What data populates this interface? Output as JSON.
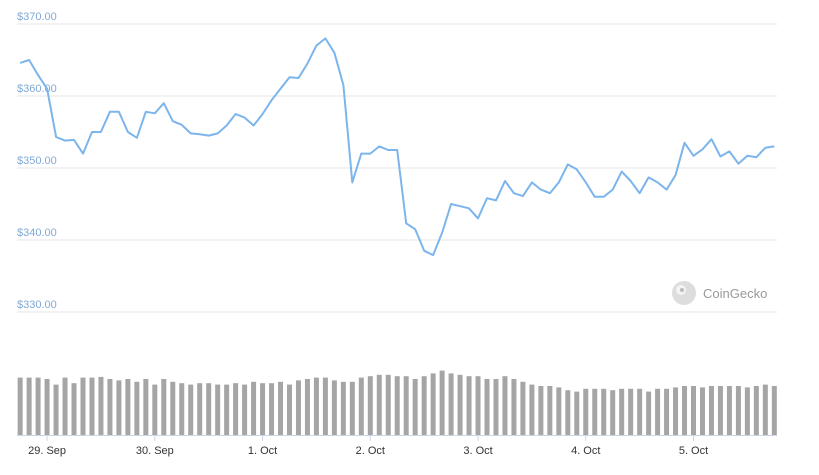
{
  "chart_data": [
    {
      "type": "line",
      "x": [
        -6,
        -4,
        -2,
        0,
        2,
        4,
        6,
        8,
        10,
        12,
        14,
        16,
        18,
        20,
        22,
        24,
        26,
        28,
        30,
        32,
        34,
        36,
        38,
        40,
        42,
        44,
        46,
        48,
        50,
        52,
        54,
        56,
        58,
        60,
        62,
        64,
        66,
        68,
        70,
        72,
        74,
        76,
        78,
        80,
        82,
        84,
        86,
        88,
        90,
        92,
        94,
        96,
        98,
        100,
        102,
        104,
        106,
        108,
        110,
        112,
        114,
        116,
        118,
        120,
        122,
        124,
        126,
        128,
        130,
        132,
        134,
        136,
        138,
        140,
        142,
        144,
        146,
        148,
        150,
        152,
        154,
        156,
        158,
        160,
        162
      ],
      "series": [
        {
          "color": "#7cb5ec",
          "values": [
            364.6,
            365,
            362.9,
            361,
            354.3,
            353.8,
            353.9,
            352,
            355,
            355,
            357.8,
            357.8,
            355,
            354.2,
            357.8,
            357.6,
            359,
            356.5,
            356,
            354.8,
            354.7,
            354.5,
            354.8,
            355.9,
            357.5,
            357,
            355.9,
            357.5,
            359.4,
            361,
            362.6,
            362.5,
            364.5,
            367,
            368,
            366,
            361.5,
            348,
            352,
            352,
            353,
            352.5,
            352.5,
            342.3,
            341.5,
            338.5,
            337.9,
            341,
            345,
            344.7,
            344.4,
            343,
            345.8,
            345.5,
            348.2,
            346.5,
            346.1,
            348,
            347,
            346.5,
            348,
            350.5,
            349.8,
            348,
            346,
            346,
            347,
            349.5,
            348.2,
            346.5,
            348.7,
            348,
            347,
            349,
            353.5,
            351.7,
            352.6,
            354,
            351.6,
            352.3,
            350.6,
            351.7,
            351.5,
            352.8,
            353
          ]
        }
      ],
      "xlim": [
        -6.7,
        162.6
      ],
      "ylim": [
        330,
        370
      ],
      "yticks": [
        {
          "value": 330,
          "label": "$330.00"
        },
        {
          "value": 340,
          "label": "$340.00"
        },
        {
          "value": 350,
          "label": "$350.00"
        },
        {
          "value": 360,
          "label": "$360.00"
        },
        {
          "value": 370,
          "label": "$370.00"
        }
      ],
      "grid": true,
      "watermark": "CoinGecko"
    },
    {
      "type": "bar",
      "x": [
        -6,
        -4,
        -2,
        0,
        2,
        4,
        6,
        8,
        10,
        12,
        14,
        16,
        18,
        20,
        22,
        24,
        26,
        28,
        30,
        32,
        34,
        36,
        38,
        40,
        42,
        44,
        46,
        48,
        50,
        52,
        54,
        56,
        58,
        60,
        62,
        64,
        66,
        68,
        70,
        72,
        74,
        76,
        78,
        80,
        82,
        84,
        86,
        88,
        90,
        92,
        94,
        96,
        98,
        100,
        102,
        104,
        106,
        108,
        110,
        112,
        114,
        116,
        118,
        120,
        122,
        124,
        126,
        128,
        130,
        132,
        134,
        136,
        138,
        140,
        142,
        144,
        146,
        148,
        150,
        152,
        154,
        156,
        158,
        160,
        162
      ],
      "color": "#a5a5a5",
      "values": [
        82,
        82,
        82,
        80,
        72,
        82,
        74,
        82,
        82,
        83,
        80,
        78,
        80,
        76,
        80,
        72,
        80,
        76,
        74,
        72,
        74,
        74,
        72,
        72,
        74,
        72,
        76,
        74,
        74,
        76,
        72,
        78,
        80,
        82,
        82,
        78,
        76,
        76,
        82,
        84,
        86,
        86,
        84,
        84,
        80,
        84,
        88,
        92,
        88,
        86,
        84,
        84,
        80,
        80,
        84,
        80,
        76,
        72,
        70,
        70,
        68,
        64,
        62,
        66,
        66,
        66,
        64,
        66,
        66,
        66,
        62,
        66,
        66,
        68,
        70,
        70,
        68,
        70,
        70,
        70,
        70,
        68,
        70,
        72,
        70
      ],
      "xlim": [
        -6.7,
        162.6
      ],
      "ylim": [
        0,
        100
      ],
      "xticks": [
        {
          "value": 0,
          "label": "29. Sep"
        },
        {
          "value": 24,
          "label": "30. Sep"
        },
        {
          "value": 48,
          "label": "1. Oct"
        },
        {
          "value": 72,
          "label": "2. Oct"
        },
        {
          "value": 96,
          "label": "3. Oct"
        },
        {
          "value": 120,
          "label": "4. Oct"
        },
        {
          "value": 144,
          "label": "5. Oct"
        }
      ]
    }
  ]
}
